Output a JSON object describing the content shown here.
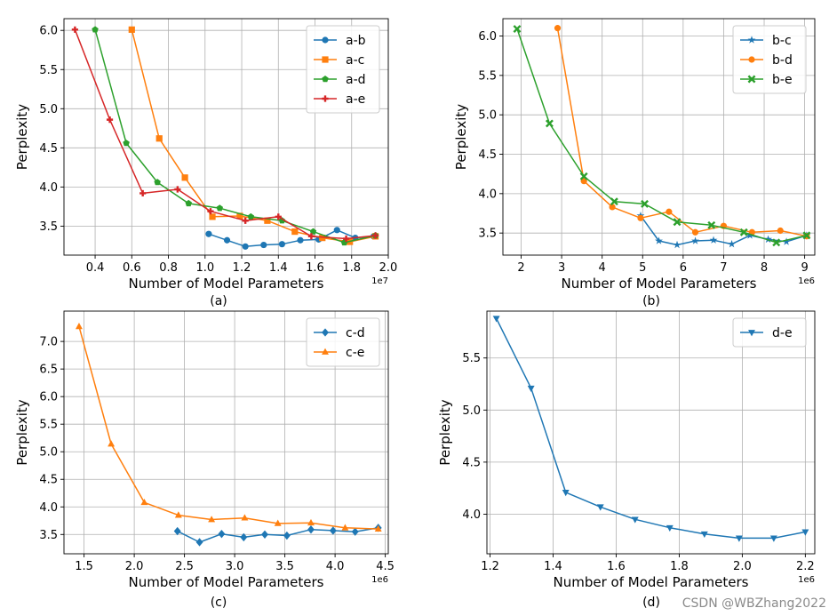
{
  "watermark": "CSDN @WBZhang2022",
  "colors": {
    "blue": "#1f77b4",
    "orange": "#ff7f0e",
    "green": "#2ca02c",
    "red": "#d62728",
    "grid": "#b0b0b0",
    "axis": "#000000"
  },
  "chart_data": [
    {
      "id": "a",
      "type": "line",
      "caption": "(a)",
      "xlabel": "Number of Model Parameters",
      "ylabel": "Perplexity",
      "xscale_label": "1e7",
      "xlim": [
        2.3,
        20.0
      ],
      "ylim": [
        3.13,
        6.15
      ],
      "xticks": [
        4,
        6,
        8,
        10,
        12,
        14,
        16,
        18,
        20
      ],
      "xtick_labels": [
        "0.4",
        "0.6",
        "0.8",
        "1.0",
        "1.2",
        "1.4",
        "1.6",
        "1.8",
        "2.0"
      ],
      "yticks": [
        3.5,
        4.0,
        4.5,
        5.0,
        5.5,
        6.0
      ],
      "ytick_labels": [
        "3.5",
        "4.0",
        "4.5",
        "5.0",
        "5.5",
        "6.0"
      ],
      "legend_position": "top-right",
      "series": [
        {
          "name": "a-b",
          "color": "#1f77b4",
          "marker": "circle",
          "x": [
            10.2,
            11.2,
            12.2,
            13.2,
            14.2,
            15.2,
            16.2,
            17.2,
            18.2,
            19.2
          ],
          "y": [
            3.4,
            3.32,
            3.24,
            3.26,
            3.27,
            3.32,
            3.33,
            3.45,
            3.35,
            3.37
          ]
        },
        {
          "name": "a-c",
          "color": "#ff7f0e",
          "marker": "square",
          "x": [
            6.0,
            7.5,
            8.9,
            10.4,
            11.9,
            13.4,
            14.9,
            16.4,
            17.9,
            19.3
          ],
          "y": [
            6.01,
            4.62,
            4.12,
            3.62,
            3.63,
            3.57,
            3.43,
            3.35,
            3.3,
            3.37
          ]
        },
        {
          "name": "a-d",
          "color": "#2ca02c",
          "marker": "pentagon",
          "x": [
            4.0,
            5.7,
            7.4,
            9.1,
            10.8,
            12.5,
            14.2,
            15.9,
            17.6,
            19.3
          ],
          "y": [
            6.01,
            4.56,
            4.06,
            3.79,
            3.73,
            3.62,
            3.57,
            3.43,
            3.29,
            3.38
          ]
        },
        {
          "name": "a-e",
          "color": "#d62728",
          "marker": "plus",
          "x": [
            2.9,
            4.8,
            6.6,
            8.5,
            10.3,
            12.2,
            14.0,
            15.8,
            17.7,
            19.3
          ],
          "y": [
            6.01,
            4.86,
            3.92,
            3.97,
            3.69,
            3.57,
            3.62,
            3.37,
            3.34,
            3.38
          ]
        }
      ]
    },
    {
      "id": "b",
      "type": "line",
      "caption": "(b)",
      "xlabel": "Number of Model Parameters",
      "ylabel": "Perplexity",
      "xscale_label": "1e6",
      "xlim": [
        1.55,
        9.25
      ],
      "ylim": [
        3.22,
        6.22
      ],
      "xticks": [
        2,
        3,
        4,
        5,
        6,
        7,
        8,
        9
      ],
      "xtick_labels": [
        "2",
        "3",
        "4",
        "5",
        "6",
        "7",
        "8",
        "9"
      ],
      "yticks": [
        3.5,
        4.0,
        4.5,
        5.0,
        5.5,
        6.0
      ],
      "ytick_labels": [
        "3.5",
        "4.0",
        "4.5",
        "5.0",
        "5.5",
        "6.0"
      ],
      "legend_position": "top-right",
      "series": [
        {
          "name": "b-c",
          "color": "#1f77b4",
          "marker": "star",
          "x": [
            4.95,
            5.4,
            5.85,
            6.3,
            6.75,
            7.2,
            7.65,
            8.1,
            8.55,
            9.05
          ],
          "y": [
            3.72,
            3.4,
            3.35,
            3.4,
            3.41,
            3.36,
            3.47,
            3.42,
            3.39,
            3.47
          ]
        },
        {
          "name": "b-d",
          "color": "#ff7f0e",
          "marker": "circle",
          "x": [
            2.9,
            3.55,
            4.25,
            4.95,
            5.65,
            6.3,
            7.0,
            7.7,
            8.4,
            9.05
          ],
          "y": [
            6.1,
            4.16,
            3.83,
            3.69,
            3.77,
            3.51,
            3.59,
            3.51,
            3.53,
            3.46
          ]
        },
        {
          "name": "b-e",
          "color": "#2ca02c",
          "marker": "x",
          "x": [
            1.9,
            2.7,
            3.55,
            4.3,
            5.05,
            5.85,
            6.7,
            7.5,
            8.3,
            9.05
          ],
          "y": [
            6.09,
            4.89,
            4.22,
            3.9,
            3.87,
            3.64,
            3.6,
            3.51,
            3.38,
            3.47
          ]
        }
      ]
    },
    {
      "id": "c",
      "type": "line",
      "caption": "(c)",
      "xlabel": "Number of Model Parameters",
      "ylabel": "Perplexity",
      "xscale_label": "1e6",
      "xlim": [
        1.3,
        4.53
      ],
      "ylim": [
        3.15,
        7.55
      ],
      "xticks": [
        1.5,
        2.0,
        2.5,
        3.0,
        3.5,
        4.0,
        4.5
      ],
      "xtick_labels": [
        "1.5",
        "2.0",
        "2.5",
        "3.0",
        "3.5",
        "4.0",
        "4.5"
      ],
      "yticks": [
        3.5,
        4.0,
        4.5,
        5.0,
        5.5,
        6.0,
        6.5,
        7.0
      ],
      "ytick_labels": [
        "3.5",
        "4.0",
        "4.5",
        "5.0",
        "5.5",
        "6.0",
        "6.5",
        "7.0"
      ],
      "legend_position": "top-right",
      "series": [
        {
          "name": "c-d",
          "color": "#1f77b4",
          "marker": "diamond",
          "x": [
            2.43,
            2.65,
            2.87,
            3.09,
            3.3,
            3.52,
            3.76,
            3.98,
            4.2,
            4.43
          ],
          "y": [
            3.56,
            3.36,
            3.51,
            3.45,
            3.5,
            3.48,
            3.59,
            3.57,
            3.55,
            3.62
          ]
        },
        {
          "name": "c-e",
          "color": "#ff7f0e",
          "marker": "triangle-up",
          "x": [
            1.45,
            1.77,
            2.1,
            2.44,
            2.77,
            3.1,
            3.43,
            3.76,
            4.1,
            4.43
          ],
          "y": [
            7.27,
            5.14,
            4.08,
            3.85,
            3.77,
            3.8,
            3.7,
            3.71,
            3.62,
            3.6
          ]
        }
      ]
    },
    {
      "id": "d",
      "type": "line",
      "caption": "(d)",
      "xlabel": "Number of Model Parameters",
      "ylabel": "Perplexity",
      "xscale_label": "1e6",
      "xlim": [
        1.19,
        2.23
      ],
      "ylim": [
        3.62,
        5.95
      ],
      "xticks": [
        1.2,
        1.4,
        1.6,
        1.8,
        2.0,
        2.2
      ],
      "xtick_labels": [
        "1.2",
        "1.4",
        "1.6",
        "1.8",
        "2.0",
        "2.2"
      ],
      "yticks": [
        4.0,
        4.5,
        5.0,
        5.5
      ],
      "ytick_labels": [
        "4.0",
        "4.5",
        "5.0",
        "5.5"
      ],
      "legend_position": "top-right",
      "series": [
        {
          "name": "d-e",
          "color": "#1f77b4",
          "marker": "triangle-down",
          "x": [
            1.22,
            1.33,
            1.44,
            1.55,
            1.66,
            1.77,
            1.88,
            1.99,
            2.1,
            2.2
          ],
          "y": [
            5.88,
            5.21,
            4.21,
            4.07,
            3.95,
            3.87,
            3.81,
            3.77,
            3.77,
            3.83
          ]
        }
      ]
    }
  ]
}
